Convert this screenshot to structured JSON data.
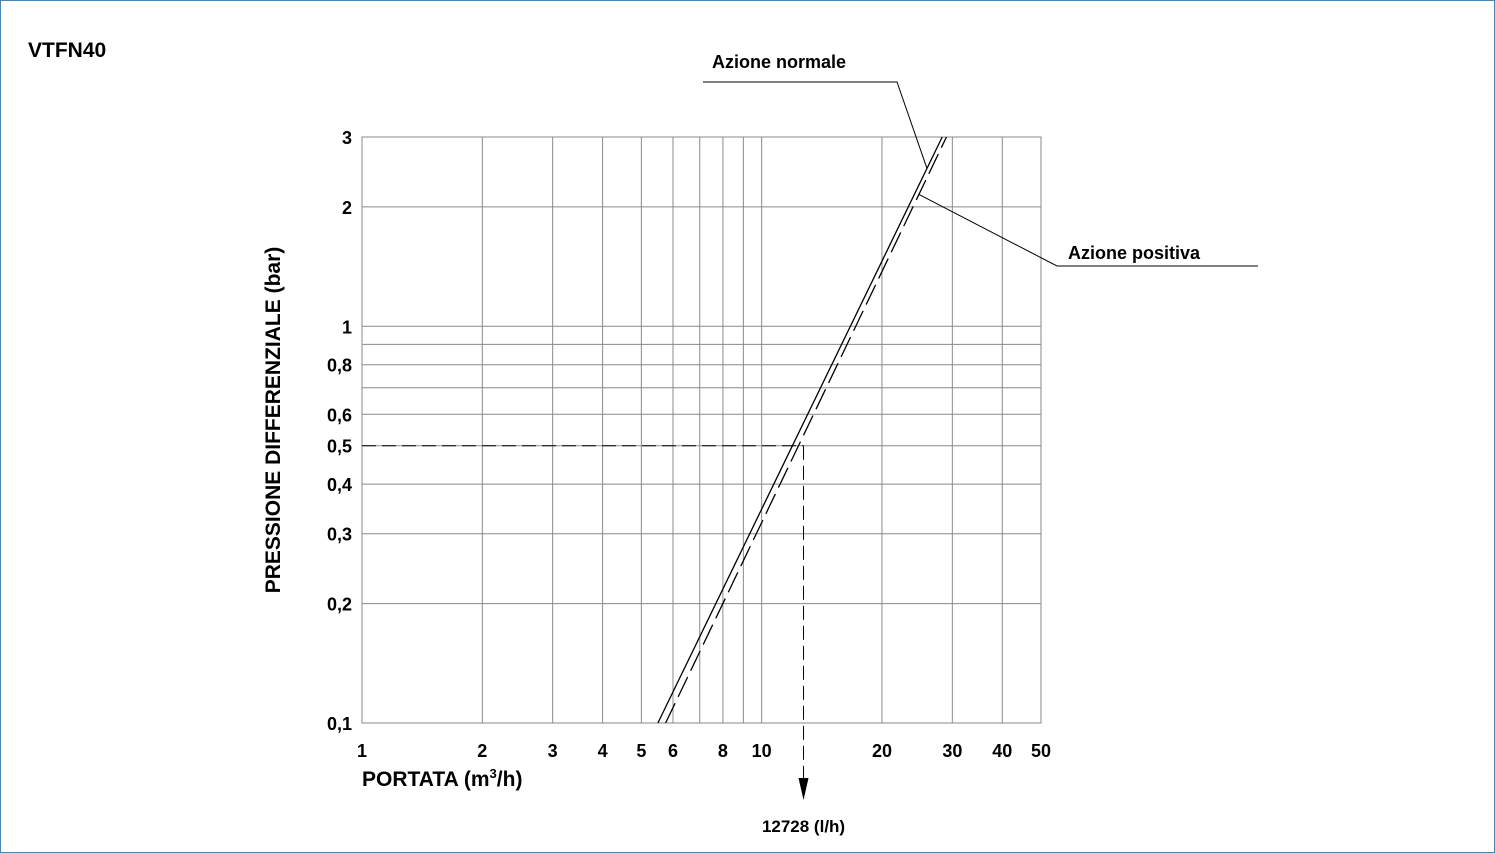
{
  "colors": {
    "frame": "#4a86b4",
    "grid": "#8a8a8a",
    "ink": "#000000"
  },
  "chart_data": {
    "type": "line",
    "title": "VTFN40",
    "xlabel": {
      "main": "PORTATA (m",
      "sup": "3",
      "tail": "/h)"
    },
    "ylabel": "PRESSIONE DIFFERENZIALE (bar)",
    "x_scale": "log",
    "y_scale": "log",
    "xlim": [
      1,
      50
    ],
    "ylim": [
      0.1,
      3
    ],
    "grid": true,
    "x_grid_lines": [
      1,
      2,
      3,
      4,
      5,
      6,
      7,
      8,
      9,
      10,
      20,
      30,
      40,
      50
    ],
    "y_grid_lines": [
      0.1,
      0.2,
      0.3,
      0.4,
      0.5,
      0.6,
      0.7,
      0.8,
      0.9,
      1,
      2,
      3
    ],
    "x_ticks": [
      {
        "value": 1,
        "label": "1"
      },
      {
        "value": 2,
        "label": "2"
      },
      {
        "value": 3,
        "label": "3"
      },
      {
        "value": 4,
        "label": "4"
      },
      {
        "value": 5,
        "label": "5"
      },
      {
        "value": 6,
        "label": "6"
      },
      {
        "value": 8,
        "label": "8"
      },
      {
        "value": 10,
        "label": "10"
      },
      {
        "value": 20,
        "label": "20"
      },
      {
        "value": 30,
        "label": "30"
      },
      {
        "value": 40,
        "label": "40"
      },
      {
        "value": 50,
        "label": "50"
      }
    ],
    "y_ticks": [
      {
        "value": 0.1,
        "label": "0,1"
      },
      {
        "value": 0.2,
        "label": "0,2"
      },
      {
        "value": 0.3,
        "label": "0,3"
      },
      {
        "value": 0.4,
        "label": "0,4"
      },
      {
        "value": 0.5,
        "label": "0,5"
      },
      {
        "value": 0.6,
        "label": "0,6"
      },
      {
        "value": 0.8,
        "label": "0,8"
      },
      {
        "value": 1,
        "label": "1"
      },
      {
        "value": 2,
        "label": "2"
      },
      {
        "value": 3,
        "label": "3"
      }
    ],
    "series": [
      {
        "name": "Azione normale",
        "style": "solid",
        "x": [
          5.5,
          28.3
        ],
        "y": [
          0.1,
          3
        ]
      },
      {
        "name": "Azione positiva",
        "style": "dashed",
        "x": [
          5.75,
          29
        ],
        "y": [
          0.1,
          3
        ]
      }
    ],
    "annotation": {
      "label": "12728 (l/h)",
      "x": 12.728,
      "y": 0.5
    }
  }
}
